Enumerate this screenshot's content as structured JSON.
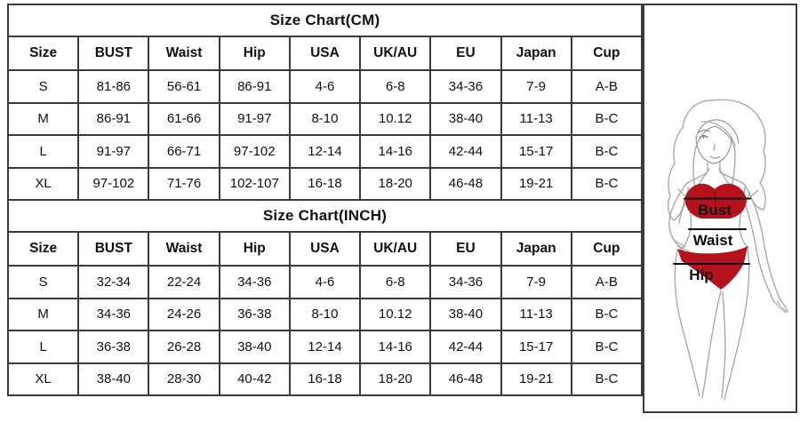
{
  "colors": {
    "table_border": "#3a3a3a",
    "text": "#111111",
    "bikini_red": "#b5121c",
    "figure_outline": "#a3a3a3",
    "measure_line": "#0d0d0d"
  },
  "cm_table": {
    "title": "Size Chart(CM)",
    "headers": [
      "Size",
      "BUST",
      "Waist",
      "Hip",
      "USA",
      "UK/AU",
      "EU",
      "Japan",
      "Cup"
    ],
    "rows": [
      [
        "S",
        "81-86",
        "56-61",
        "86-91",
        "4-6",
        "6-8",
        "34-36",
        "7-9",
        "A-B"
      ],
      [
        "M",
        "86-91",
        "61-66",
        "91-97",
        "8-10",
        "10.12",
        "38-40",
        "11-13",
        "B-C"
      ],
      [
        "L",
        "91-97",
        "66-71",
        "97-102",
        "12-14",
        "14-16",
        "42-44",
        "15-17",
        "B-C"
      ],
      [
        "XL",
        "97-102",
        "71-76",
        "102-107",
        "16-18",
        "18-20",
        "46-48",
        "19-21",
        "B-C"
      ]
    ]
  },
  "inch_table": {
    "title": "Size Chart(INCH)",
    "headers": [
      "Size",
      "BUST",
      "Waist",
      "Hip",
      "USA",
      "UK/AU",
      "EU",
      "Japan",
      "Cup"
    ],
    "rows": [
      [
        "S",
        "32-34",
        "22-24",
        "34-36",
        "4-6",
        "6-8",
        "34-36",
        "7-9",
        "A-B"
      ],
      [
        "M",
        "34-36",
        "24-26",
        "36-38",
        "8-10",
        "10.12",
        "38-40",
        "11-13",
        "B-C"
      ],
      [
        "L",
        "36-38",
        "26-28",
        "38-40",
        "12-14",
        "14-16",
        "42-44",
        "15-17",
        "B-C"
      ],
      [
        "XL",
        "38-40",
        "28-30",
        "40-42",
        "16-18",
        "18-20",
        "46-48",
        "19-21",
        "B-C"
      ]
    ]
  },
  "figure": {
    "bust_label": "Bust",
    "waist_label": "Waist",
    "hip_label": "Hip"
  },
  "chart_data": [
    {
      "type": "table",
      "title": "Size Chart(CM)",
      "columns": [
        "Size",
        "BUST",
        "Waist",
        "Hip",
        "USA",
        "UK/AU",
        "EU",
        "Japan",
        "Cup"
      ],
      "rows": [
        [
          "S",
          "81-86",
          "56-61",
          "86-91",
          "4-6",
          "6-8",
          "34-36",
          "7-9",
          "A-B"
        ],
        [
          "M",
          "86-91",
          "61-66",
          "91-97",
          "8-10",
          "10.12",
          "38-40",
          "11-13",
          "B-C"
        ],
        [
          "L",
          "91-97",
          "66-71",
          "97-102",
          "12-14",
          "14-16",
          "42-44",
          "15-17",
          "B-C"
        ],
        [
          "XL",
          "97-102",
          "71-76",
          "102-107",
          "16-18",
          "18-20",
          "46-48",
          "19-21",
          "B-C"
        ]
      ]
    },
    {
      "type": "table",
      "title": "Size Chart(INCH)",
      "columns": [
        "Size",
        "BUST",
        "Waist",
        "Hip",
        "USA",
        "UK/AU",
        "EU",
        "Japan",
        "Cup"
      ],
      "rows": [
        [
          "S",
          "32-34",
          "22-24",
          "34-36",
          "4-6",
          "6-8",
          "34-36",
          "7-9",
          "A-B"
        ],
        [
          "M",
          "34-36",
          "24-26",
          "36-38",
          "8-10",
          "10.12",
          "38-40",
          "11-13",
          "B-C"
        ],
        [
          "L",
          "36-38",
          "26-28",
          "38-40",
          "12-14",
          "14-16",
          "42-44",
          "15-17",
          "B-C"
        ],
        [
          "XL",
          "38-40",
          "28-30",
          "40-42",
          "16-18",
          "18-20",
          "46-48",
          "19-21",
          "B-C"
        ]
      ]
    }
  ]
}
